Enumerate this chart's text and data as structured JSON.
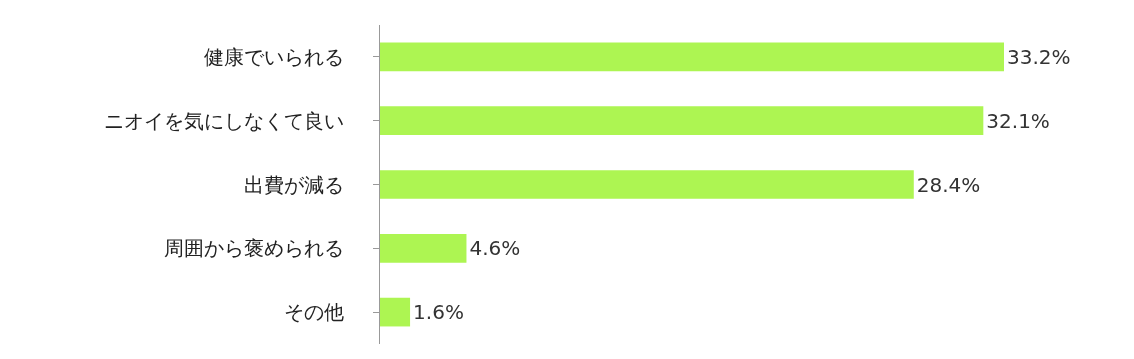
{
  "chart_data": {
    "type": "bar",
    "orientation": "horizontal",
    "categories": [
      "健康でいられる",
      "ニオイを気にしなくて良い",
      "出費が減る",
      "周囲から褒められる",
      "その他"
    ],
    "values": [
      33.2,
      32.1,
      28.4,
      4.6,
      1.6
    ],
    "value_labels": [
      "33.2%",
      "32.1%",
      "28.4%",
      "4.6%",
      "1.6%"
    ],
    "color": "#adf552"
  }
}
